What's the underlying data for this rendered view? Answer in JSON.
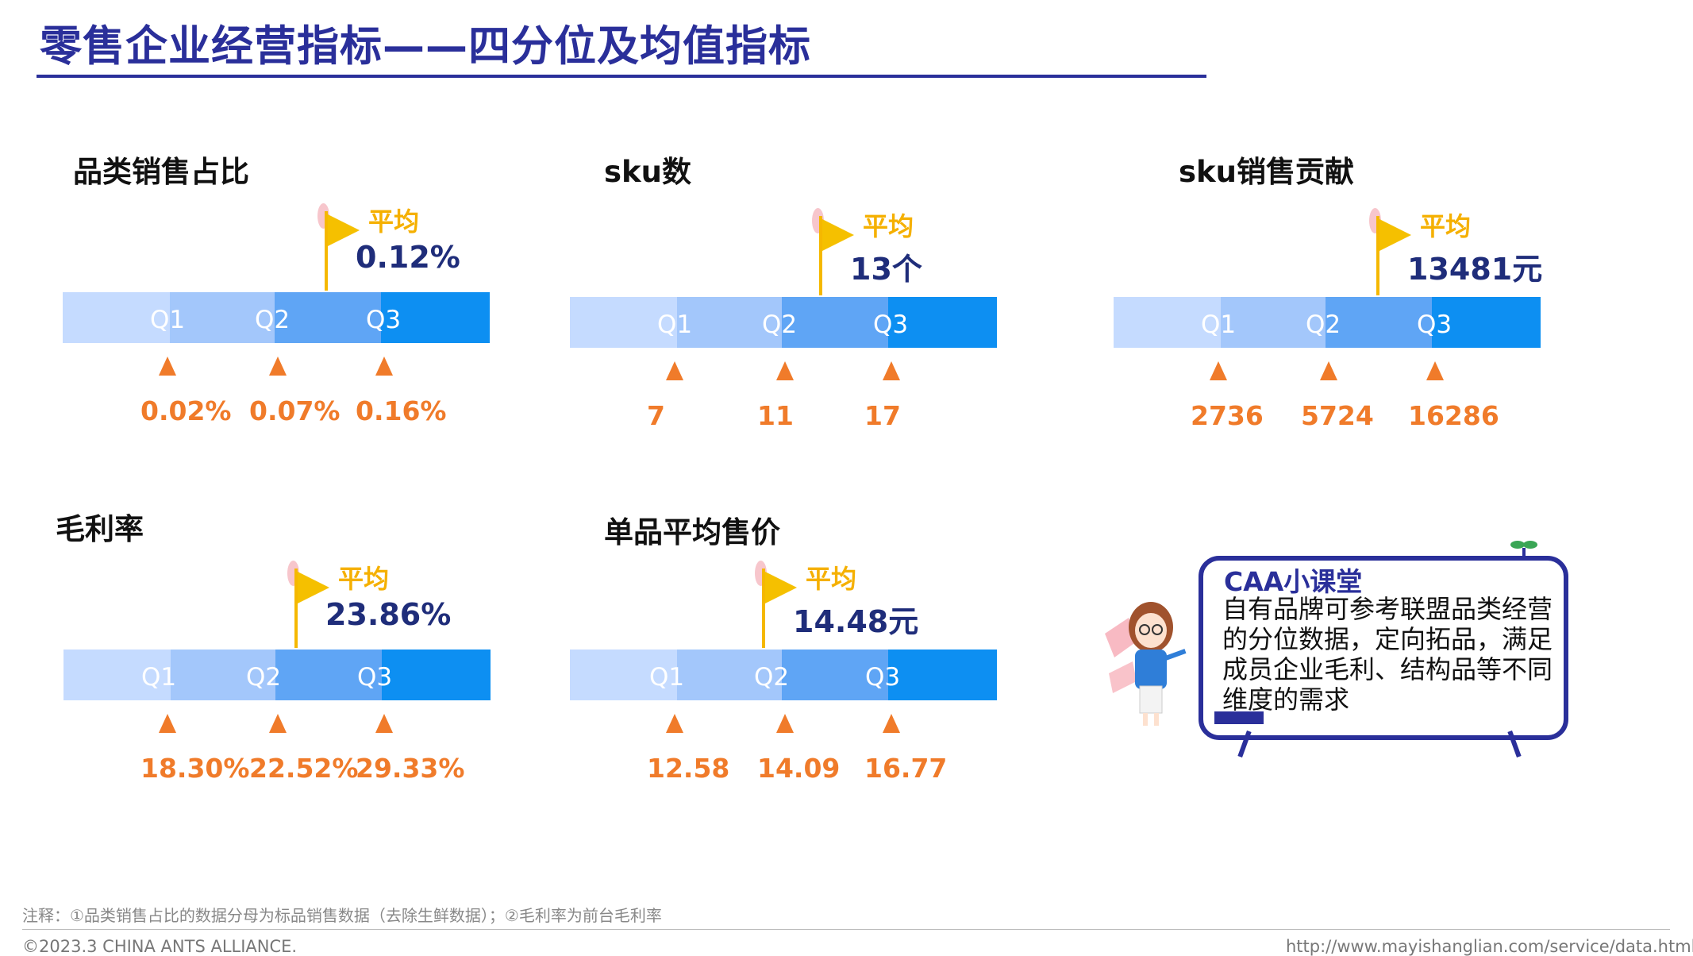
{
  "title": "零售企业经营指标——四分位及均值指标",
  "quartile_labels": [
    "Q1",
    "Q2",
    "Q3"
  ],
  "avg_label": "平均",
  "metrics": [
    {
      "title": "品类销售占比",
      "average": "0.12%",
      "q": [
        "0.02%",
        "0.07%",
        "0.16%"
      ]
    },
    {
      "title": "sku数",
      "average": "13个",
      "q": [
        "7",
        "11",
        "17"
      ]
    },
    {
      "title": "sku销售贡献",
      "average": "13481元",
      "q": [
        "2736",
        "5724",
        "16286"
      ]
    },
    {
      "title": "毛利率",
      "average": "23.86%",
      "q": [
        "18.30%",
        "22.52%",
        "29.33%"
      ]
    },
    {
      "title": "单品平均售价",
      "average": "14.48元",
      "q": [
        "12.58",
        "14.09",
        "16.77"
      ]
    }
  ],
  "caa": {
    "title": "CAA小课堂",
    "text": "自有品牌可参考联盟品类经营的分位数据，定向拓品，满足成员企业毛利、结构品等不同维度的需求"
  },
  "footnote": "注释：①品类销售占比的数据分母为标品销售数据（去除生鲜数据）；②毛利率为前台毛利率",
  "copyright": "©2023.3 CHINA ANTS ALLIANCE.",
  "url": "http://www.mayishanglian.com/service/data.html",
  "colors": {
    "title": "#2a2f9a",
    "average_label": "#f5b000",
    "average_value": "#1f2d7a",
    "quartile_value": "#f07b2a",
    "bar_segments": [
      "#c5dbff",
      "#a3c7fb",
      "#5fa5f5",
      "#0d8ff2"
    ]
  }
}
